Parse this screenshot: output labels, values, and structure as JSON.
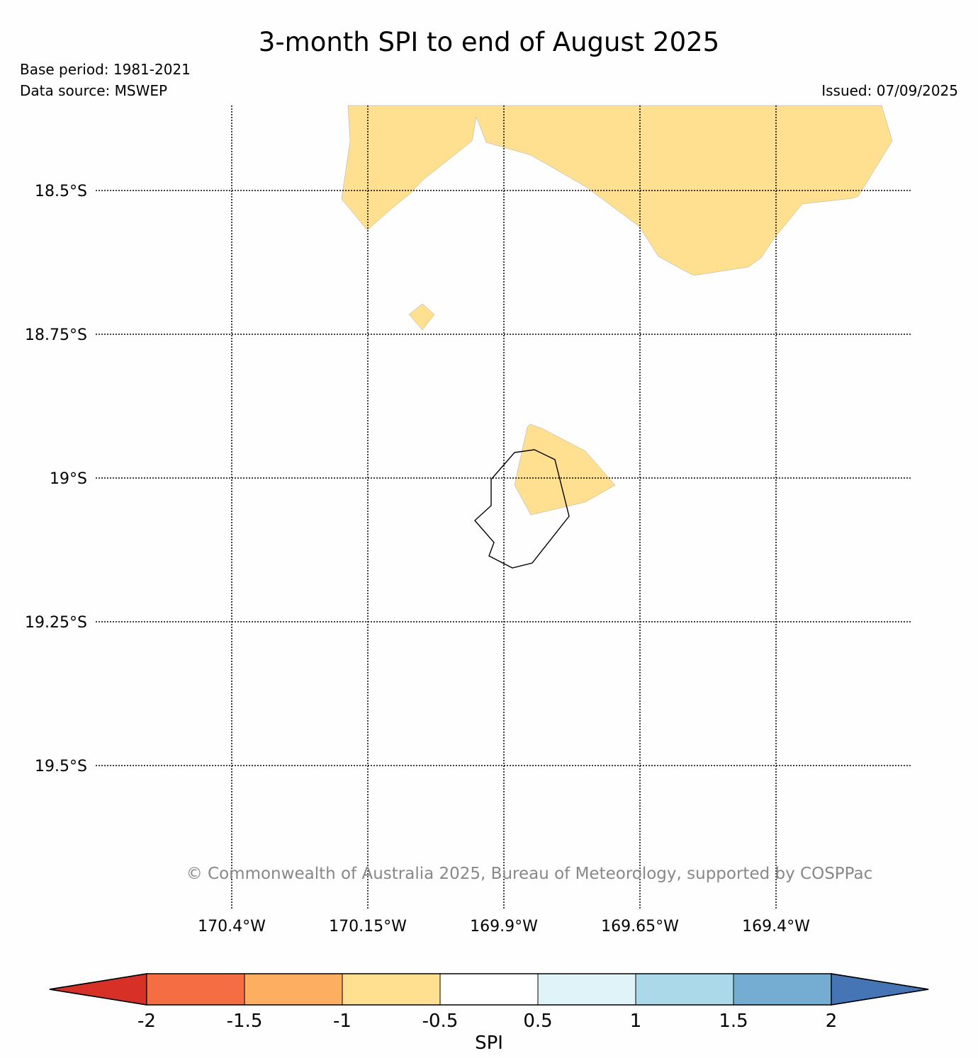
{
  "header": {
    "title": "3-month SPI to end of August 2025",
    "base_period": "Base period: 1981-2021",
    "data_source": "Data source: MSWEP",
    "issued": "Issued: 07/09/2025"
  },
  "map": {
    "latitudes": [
      "18.5°S",
      "18.75°S",
      "19°S",
      "19.25°S",
      "19.5°S"
    ],
    "longitudes": [
      "170.4°W",
      "170.15°W",
      "169.9°W",
      "169.65°W",
      "169.4°W"
    ],
    "shaded_category": "-1 to -0.5",
    "shaded_color": "#fee090",
    "copyright": "© Commonwealth of Australia 2025, Bureau of Meteorology, supported by COSPPac"
  },
  "colorbar": {
    "label": "SPI",
    "ticks": [
      "-2",
      "-1.5",
      "-1",
      "-0.5",
      "0.5",
      "1",
      "1.5",
      "2"
    ],
    "colors": [
      "#d73027",
      "#f46d43",
      "#fdae61",
      "#fee090",
      "#ffffff",
      "#e0f3f8",
      "#abd9e9",
      "#74add1",
      "#4575b4"
    ]
  }
}
